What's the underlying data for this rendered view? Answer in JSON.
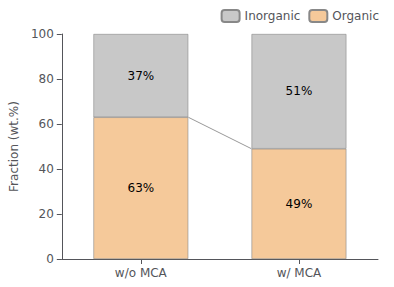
{
  "chart_data": {
    "type": "bar",
    "stacked": true,
    "ylabel": "Fraction (wt.%)",
    "categories": [
      "w/o MCA",
      "w/ MCA"
    ],
    "series": [
      {
        "name": "Organic",
        "color": "#F5C99A",
        "values": [
          63,
          49
        ],
        "value_labels": [
          "63%",
          "49%"
        ]
      },
      {
        "name": "Inorganic",
        "color": "#C8C8C8",
        "values": [
          37,
          51
        ],
        "value_labels": [
          "37%",
          "51%"
        ]
      }
    ],
    "ylim": [
      0,
      100
    ],
    "yticks": [
      0,
      20,
      40,
      60,
      80,
      100
    ],
    "grid": false,
    "legend": "upper right",
    "data_labels": true
  }
}
